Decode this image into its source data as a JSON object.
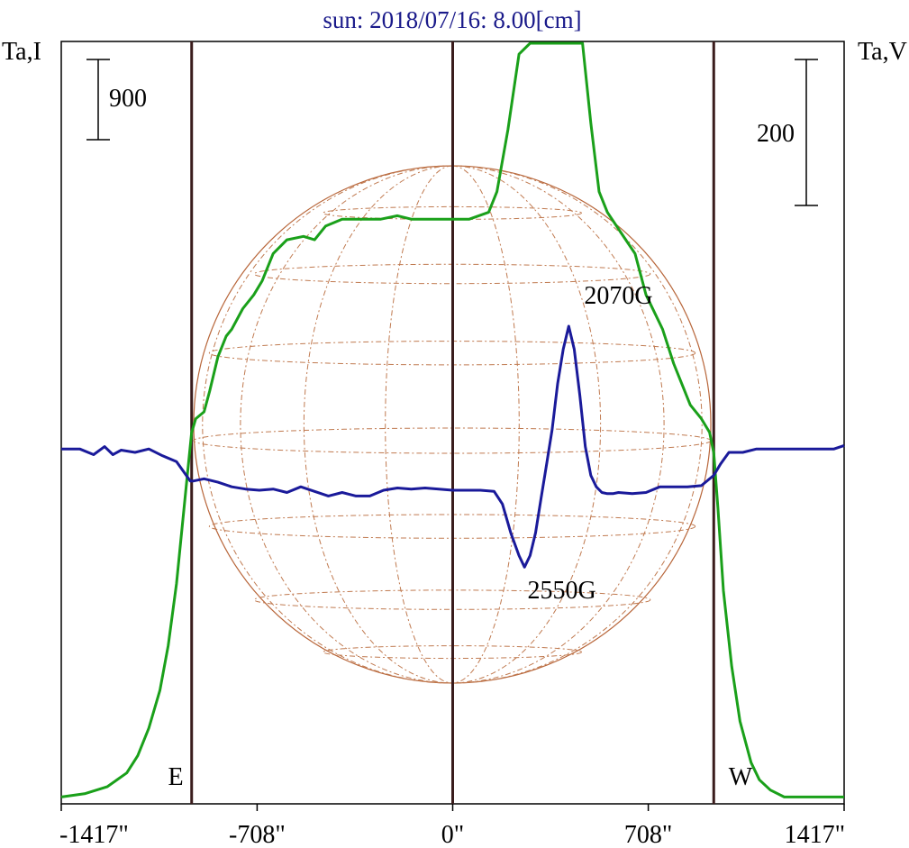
{
  "chart_data": {
    "type": "line",
    "title": "sun: 2018/07/16: 8.00[cm]",
    "ylabel_left": "Ta,I",
    "ylabel_right": "Ta,V",
    "xlim": [
      -1417,
      1417
    ],
    "x_ticks": [
      {
        "value": -1417,
        "label": "-1417\""
      },
      {
        "value": -708,
        "label": "-708\""
      },
      {
        "value": 0,
        "label": "0\""
      },
      {
        "value": 708,
        "label": "708\""
      },
      {
        "value": 1417,
        "label": "1417\""
      }
    ],
    "vertical_lines": [
      -945,
      0,
      945
    ],
    "limb_labels": {
      "east": "E",
      "west": "W"
    },
    "scale_bars": {
      "left": {
        "label": "900",
        "value": 900
      },
      "right": {
        "label": "200",
        "value": 200
      }
    },
    "annotations": [
      {
        "text": "2070G",
        "x": 600,
        "y": 620
      },
      {
        "text": "2550G",
        "x": 395,
        "y": -680
      }
    ],
    "i_ylim": [
      -100,
      9100
    ],
    "v_ylim": [
      -1050,
      1000
    ],
    "series": [
      {
        "key": "I",
        "color": "#1aa01a",
        "x": [
          -1417,
          -1330,
          -1250,
          -1180,
          -1140,
          -1100,
          -1060,
          -1030,
          -1000,
          -980,
          -960,
          -945,
          -930,
          -900,
          -880,
          -850,
          -820,
          -800,
          -760,
          -720,
          -690,
          -650,
          -600,
          -540,
          -500,
          -460,
          -400,
          -330,
          -260,
          -200,
          -150,
          -80,
          0,
          60,
          130,
          160,
          200,
          240,
          280,
          320,
          360,
          390,
          410,
          440,
          470,
          500,
          530,
          560,
          610,
          660,
          700,
          760,
          800,
          860,
          900,
          930,
          945,
          960,
          980,
          1010,
          1040,
          1080,
          1110,
          1150,
          1200,
          1280,
          1417
        ],
        "y": [
          0,
          50,
          150,
          350,
          600,
          1000,
          1550,
          2200,
          3100,
          3900,
          4700,
          5300,
          5500,
          5600,
          5900,
          6400,
          6700,
          6800,
          7100,
          7300,
          7500,
          7900,
          8100,
          8150,
          8100,
          8300,
          8400,
          8400,
          8400,
          8450,
          8400,
          8400,
          8400,
          8400,
          8500,
          8800,
          9700,
          10800,
          11800,
          12600,
          13100,
          13300,
          13400,
          13200,
          11800,
          9800,
          8800,
          8500,
          8200,
          7900,
          7300,
          6800,
          6300,
          5700,
          5500,
          5300,
          5000,
          4200,
          3000,
          1900,
          1100,
          500,
          250,
          100,
          0,
          0,
          0
        ]
      },
      {
        "key": "V",
        "color": "#1a1a9a",
        "x": [
          -1417,
          -1350,
          -1300,
          -1260,
          -1230,
          -1200,
          -1150,
          -1100,
          -1050,
          -1000,
          -950,
          -940,
          -900,
          -850,
          -800,
          -750,
          -700,
          -650,
          -600,
          -550,
          -500,
          -450,
          -400,
          -350,
          -300,
          -250,
          -200,
          -150,
          -100,
          -50,
          0,
          50,
          100,
          150,
          180,
          210,
          240,
          260,
          280,
          300,
          320,
          340,
          360,
          380,
          400,
          420,
          440,
          460,
          480,
          500,
          520,
          540,
          560,
          580,
          600,
          650,
          700,
          750,
          800,
          850,
          900,
          945,
          970,
          1000,
          1050,
          1100,
          1200,
          1300,
          1380,
          1417
        ],
        "y": [
          30,
          30,
          -20,
          50,
          -20,
          20,
          0,
          30,
          -30,
          -80,
          -250,
          -250,
          -230,
          -260,
          -300,
          -320,
          -330,
          -320,
          -350,
          -300,
          -340,
          -380,
          -350,
          -380,
          -380,
          -330,
          -310,
          -320,
          -310,
          -320,
          -330,
          -330,
          -330,
          -340,
          -450,
          -700,
          -900,
          -1000,
          -900,
          -700,
          -400,
          -100,
          200,
          600,
          900,
          1100,
          900,
          500,
          50,
          -200,
          -300,
          -350,
          -360,
          -360,
          -350,
          -360,
          -350,
          -300,
          -300,
          -300,
          -290,
          -200,
          -100,
          0,
          0,
          30,
          30,
          30,
          30,
          60
        ]
      }
    ]
  }
}
